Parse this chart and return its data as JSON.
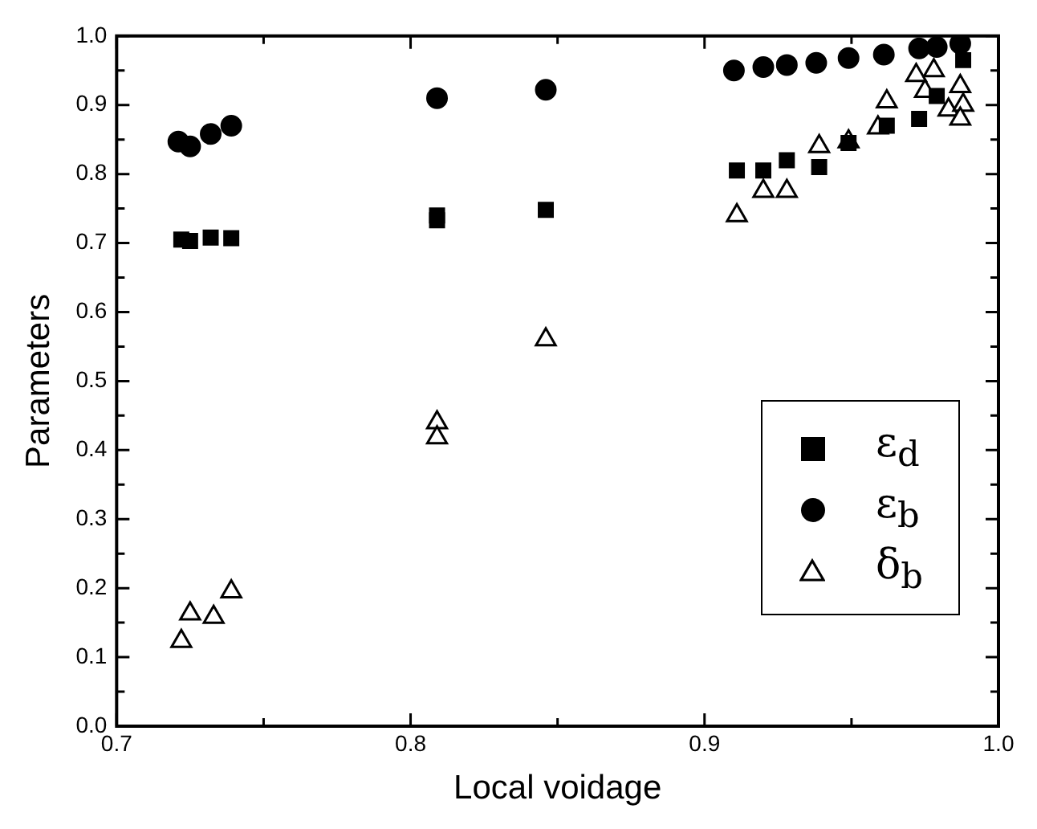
{
  "chart_data": {
    "type": "scatter",
    "xlabel": "Local voidage",
    "ylabel": "Parameters",
    "xlim": [
      0.7,
      1.0
    ],
    "ylim": [
      0,
      1.0
    ],
    "xticks": [
      0.7,
      {
        "value": 0.75,
        "label": null
      },
      0.8,
      {
        "value": 0.85,
        "label": null
      },
      0.9,
      {
        "value": 0.95,
        "label": null
      },
      {
        "value": 1.0,
        "label": "1.0"
      }
    ],
    "yticks": [
      {
        "value": 0,
        "label": "0.0"
      },
      {
        "value": 0.05,
        "label": null
      },
      0.1,
      {
        "value": 0.15,
        "label": null
      },
      0.2,
      {
        "value": 0.25,
        "label": null
      },
      0.3,
      {
        "value": 0.35,
        "label": null
      },
      0.4,
      {
        "value": 0.45,
        "label": null
      },
      0.5,
      {
        "value": 0.55,
        "label": null
      },
      0.6,
      {
        "value": 0.65,
        "label": null
      },
      0.7,
      {
        "value": 0.75,
        "label": null
      },
      0.8,
      {
        "value": 0.85,
        "label": null
      },
      0.9,
      {
        "value": 0.95,
        "label": null
      },
      {
        "value": 1.0,
        "label": "1.0"
      }
    ],
    "grid": false,
    "legend": "bottom right",
    "series": [
      {
        "name": "ε$_{d}$",
        "color": "#000000",
        "marker": "square",
        "x": [
          0.722,
          0.725,
          0.732,
          0.739,
          0.809,
          0.809,
          0.846,
          0.911,
          0.92,
          0.928,
          0.939,
          0.949,
          0.962,
          0.973,
          0.979,
          0.988
        ],
        "values": [
          0.705,
          0.703,
          0.708,
          0.707,
          0.733,
          0.74,
          0.748,
          0.805,
          0.805,
          0.82,
          0.81,
          0.845,
          0.87,
          0.88,
          0.913,
          0.965
        ]
      },
      {
        "name": "ε$_{b}$",
        "color": "#000000",
        "marker": "circle",
        "x": [
          0.721,
          0.725,
          0.732,
          0.739,
          0.809,
          0.846,
          0.91,
          0.92,
          0.928,
          0.938,
          0.949,
          0.961,
          0.973,
          0.979,
          0.987
        ],
        "values": [
          0.847,
          0.84,
          0.858,
          0.87,
          0.91,
          0.922,
          0.95,
          0.955,
          0.958,
          0.961,
          0.968,
          0.973,
          0.982,
          0.984,
          0.989
        ]
      },
      {
        "name": "δ$_{b}$",
        "color": "#000000",
        "marker": "triangle",
        "x": [
          0.722,
          0.725,
          0.733,
          0.739,
          0.809,
          0.809,
          0.846,
          0.911,
          0.92,
          0.928,
          0.939,
          0.949,
          0.959,
          0.962,
          0.972,
          0.975,
          0.978,
          0.983,
          0.987,
          0.988,
          0.987
        ],
        "values": [
          0.123,
          0.163,
          0.158,
          0.195,
          0.44,
          0.418,
          0.56,
          0.74,
          0.775,
          0.775,
          0.84,
          0.847,
          0.867,
          0.905,
          0.943,
          0.92,
          0.95,
          0.893,
          0.927,
          0.9,
          0.88
        ]
      }
    ]
  }
}
